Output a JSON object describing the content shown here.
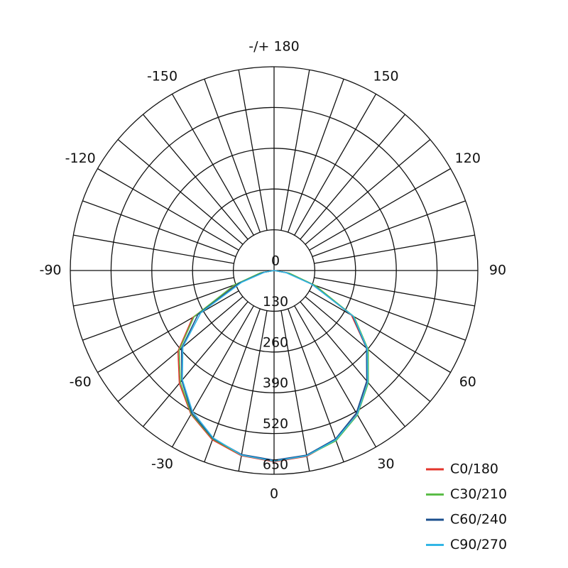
{
  "chart_data": {
    "type": "polar",
    "x": [
      -90,
      -80,
      -70,
      -60,
      -50,
      -40,
      -30,
      -20,
      -10,
      0,
      10,
      20,
      30,
      40,
      50,
      60,
      70,
      80,
      90
    ],
    "xticks": [
      -150,
      -120,
      -90,
      -60,
      -30,
      0,
      30,
      60,
      90,
      120,
      150,
      {
        "value": 180,
        "label": "-/+ 180"
      }
    ],
    "ylim": [
      0,
      650
    ],
    "yticks": [
      0,
      130,
      260,
      390,
      520,
      650
    ],
    "legend": "lower right",
    "series": [
      {
        "name": "C0/180",
        "color": "#e3342b",
        "values": [
          0,
          40,
          125,
          300,
          400,
          470,
          530,
          575,
          600,
          610,
          602,
          575,
          528,
          462,
          385,
          285,
          135,
          45,
          0
        ]
      },
      {
        "name": "C30/210",
        "color": "#5bbd48",
        "values": [
          0,
          45,
          135,
          295,
          395,
          465,
          528,
          572,
          598,
          608,
          600,
          578,
          532,
          468,
          392,
          295,
          140,
          50,
          0
        ]
      },
      {
        "name": "C60/240",
        "color": "#1b4f8e",
        "values": [
          0,
          35,
          120,
          280,
          385,
          458,
          525,
          570,
          596,
          605,
          598,
          572,
          525,
          460,
          385,
          290,
          130,
          40,
          0
        ]
      },
      {
        "name": "C90/270",
        "color": "#33b6e6",
        "values": [
          0,
          30,
          110,
          270,
          380,
          455,
          520,
          568,
          598,
          608,
          600,
          575,
          530,
          465,
          388,
          292,
          128,
          38,
          0
        ]
      }
    ]
  }
}
